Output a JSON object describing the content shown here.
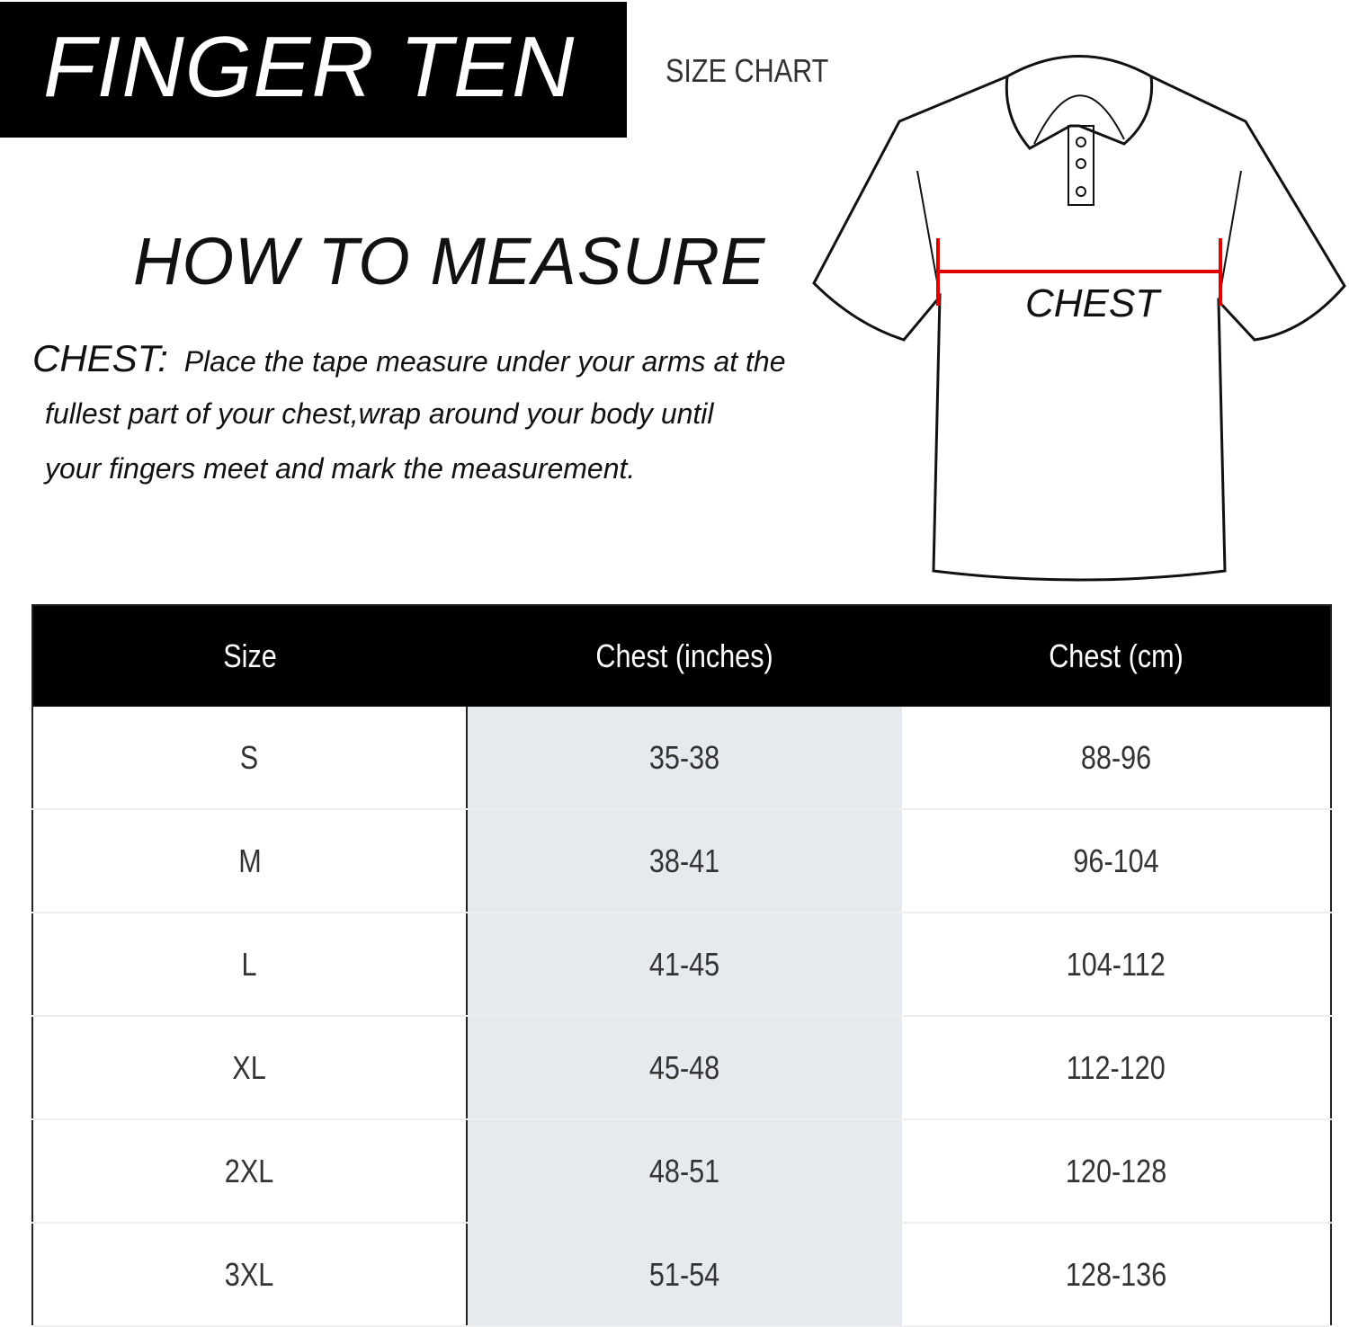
{
  "brand": "FINGER TEN",
  "subtitle": "SIZE CHART",
  "heading": "HOW TO MEASURE",
  "chest_label": "CHEST:",
  "chest_lines": [
    "Place the tape measure under your arms at the",
    "fullest part of your chest,wrap around your body until",
    "your fingers meet and mark the measurement."
  ],
  "diagram_label": "CHEST",
  "colors": {
    "measure_line": "#e00000",
    "header_bg": "#000000",
    "shaded_column": "#e6eaee"
  },
  "table": {
    "headers": [
      "Size",
      "Chest (inches)",
      "Chest (cm)"
    ],
    "rows": [
      [
        "S",
        "35-38",
        "88-96"
      ],
      [
        "M",
        "38-41",
        "96-104"
      ],
      [
        "L",
        "41-45",
        "104-112"
      ],
      [
        "XL",
        "45-48",
        "112-120"
      ],
      [
        "2XL",
        "48-51",
        "120-128"
      ],
      [
        "3XL",
        "51-54",
        "128-136"
      ]
    ]
  }
}
